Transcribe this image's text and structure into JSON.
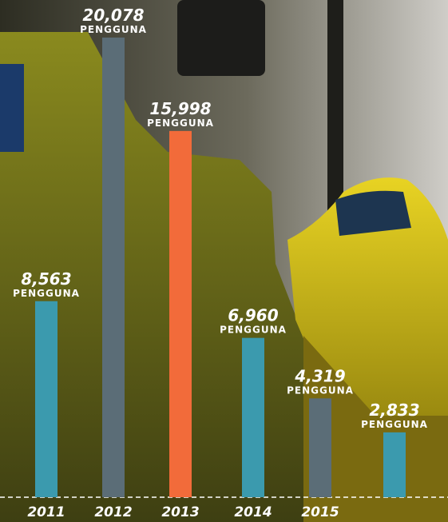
{
  "chart_data": {
    "type": "bar",
    "categories": [
      "2011",
      "2012",
      "2013",
      "2014",
      "2015",
      null
    ],
    "values": [
      8563,
      20078,
      15998,
      6960,
      4319,
      2833
    ],
    "value_labels": [
      "8,563",
      "20,078",
      "15,998",
      "6,960",
      "4,319",
      "2,833"
    ],
    "unit_label": "PENGGUNA",
    "colors": [
      "#3b9aae",
      "#5b6d77",
      "#f26b3a",
      "#3b9aae",
      "#5b6d77",
      "#3b9aae"
    ]
  }
}
